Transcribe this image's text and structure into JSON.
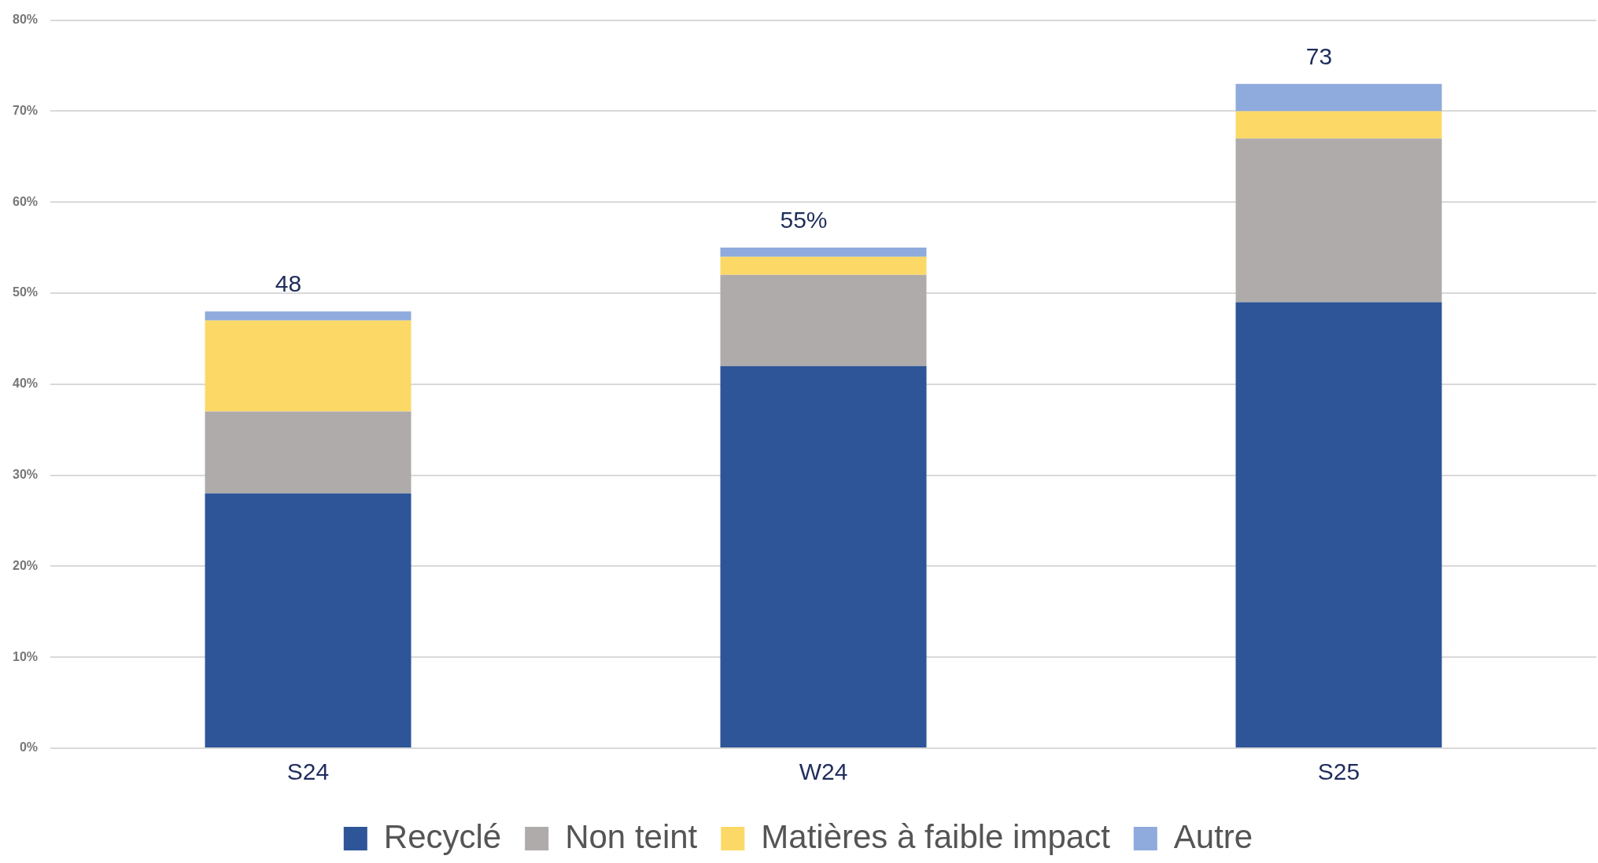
{
  "chart_data": {
    "type": "bar",
    "stacked": true,
    "categories": [
      "S24",
      "W24",
      "S25"
    ],
    "series": [
      {
        "name": "Recyclé",
        "color": "#2e5597",
        "values": [
          28,
          42,
          49
        ]
      },
      {
        "name": "Non teint",
        "color": "#afabab",
        "values": [
          9,
          10,
          18
        ]
      },
      {
        "name": "Matières à faible impact",
        "color": "#fcd966",
        "values": [
          10,
          2,
          3
        ]
      },
      {
        "name": "Autre",
        "color": "#8faadc",
        "values": [
          1,
          1,
          3
        ]
      }
    ],
    "totals": [
      "48",
      "55%",
      "73"
    ],
    "ylim": [
      0,
      80
    ],
    "yticks": [
      {
        "value": 0,
        "label": "0%"
      },
      {
        "value": 10,
        "label": "10%"
      },
      {
        "value": 20,
        "label": "20%"
      },
      {
        "value": 30,
        "label": "30%"
      },
      {
        "value": 40,
        "label": "40%"
      },
      {
        "value": 50,
        "label": "50%"
      },
      {
        "value": 60,
        "label": "60%"
      },
      {
        "value": 70,
        "label": "70%"
      },
      {
        "value": 80,
        "label": "80%"
      }
    ],
    "grid": "y",
    "legend": "bottom"
  }
}
